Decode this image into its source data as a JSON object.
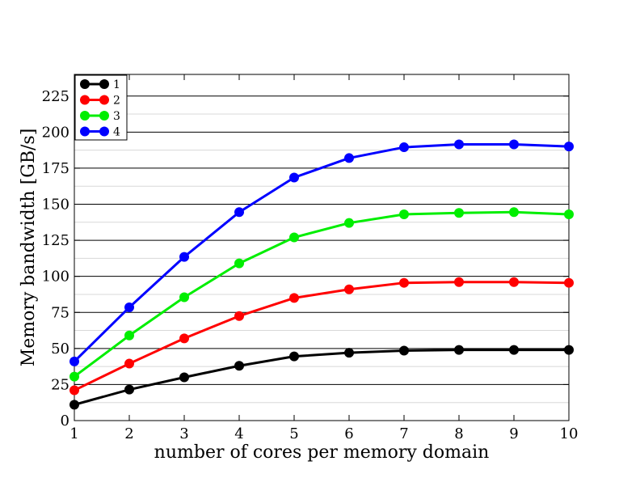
{
  "chart_data": {
    "type": "line",
    "xlabel": "number of cores per memory domain",
    "ylabel": "Memory bandwidth [GB/s]",
    "x": [
      1,
      2,
      3,
      4,
      5,
      6,
      7,
      8,
      9,
      10
    ],
    "xlim": [
      1,
      10
    ],
    "ylim": [
      0,
      240
    ],
    "xticks": [
      "1",
      "2",
      "3",
      "4",
      "5",
      "6",
      "7",
      "8",
      "9",
      "10"
    ],
    "yticks": [
      "0",
      "25",
      "50",
      "75",
      "100",
      "125",
      "150",
      "175",
      "200",
      "225"
    ],
    "major_grid": [
      25,
      50,
      75,
      100,
      125,
      150,
      175,
      200,
      225
    ],
    "minor_grid": [
      12.5,
      37.5,
      62.5,
      87.5,
      112.5,
      137.5,
      162.5,
      187.5,
      212.5
    ],
    "legend_position": "top-left",
    "series": [
      {
        "name": "1",
        "color": "#000000",
        "values": [
          11,
          21.5,
          30,
          38,
          44.5,
          47,
          48.5,
          49,
          49,
          49
        ]
      },
      {
        "name": "2",
        "color": "#ff0000",
        "values": [
          21,
          39.5,
          57,
          72.5,
          85,
          91,
          95.5,
          96,
          96,
          95.5
        ]
      },
      {
        "name": "3",
        "color": "#00ee00",
        "values": [
          30.5,
          59,
          85.5,
          109,
          127,
          137,
          143,
          144,
          144.5,
          143
        ]
      },
      {
        "name": "4",
        "color": "#0000ff",
        "values": [
          41,
          78.5,
          113.5,
          144.5,
          168.5,
          182,
          189.5,
          191.5,
          191.5,
          190
        ]
      }
    ]
  }
}
